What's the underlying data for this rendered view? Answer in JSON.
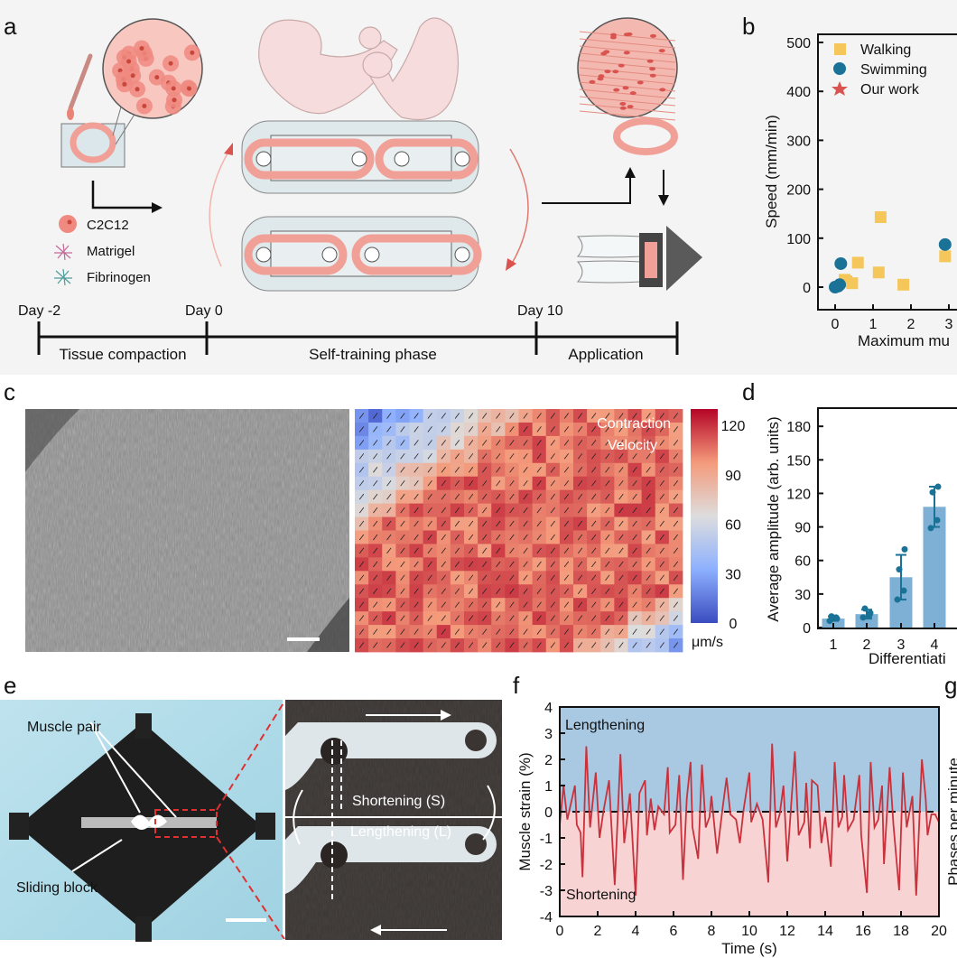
{
  "panel_labels": {
    "a": "a",
    "b": "b",
    "c": "c",
    "d": "d",
    "e": "e",
    "f": "f",
    "g": "g"
  },
  "panel_a": {
    "legend": [
      {
        "label": "C2C12",
        "color": "#f08a80"
      },
      {
        "label": "Matrigel",
        "color": "#c06a9a"
      },
      {
        "label": "Fibrinogen",
        "color": "#4f9c9c"
      }
    ],
    "timeline": {
      "days": [
        "Day -2",
        "Day 0",
        "Day 10"
      ],
      "phases": [
        "Tissue compaction",
        "Self-training phase",
        "Application"
      ]
    },
    "colors": {
      "tissue": "#f0a096",
      "arrow": "#d9534f",
      "background": "#f4f4f4"
    }
  },
  "chart_data": [
    {
      "panel": "b",
      "type": "scatter",
      "xlabel": "Maximum mu",
      "ylabel": "Speed (mm/min)",
      "xlim": [
        -0.45,
        3.2
      ],
      "ylim": [
        -45,
        520
      ],
      "xticks": [
        0,
        1,
        2,
        3
      ],
      "yticks": [
        0,
        100,
        200,
        300,
        400,
        500
      ],
      "legend_position": "top-left",
      "series": [
        {
          "name": "Walking",
          "marker": "square",
          "color": "#f5c75a",
          "points": [
            [
              0.25,
              15
            ],
            [
              0.3,
              12
            ],
            [
              0.45,
              8
            ],
            [
              0.6,
              50
            ],
            [
              1.15,
              30
            ],
            [
              1.2,
              143
            ],
            [
              1.8,
              5
            ],
            [
              2.9,
              63
            ]
          ]
        },
        {
          "name": "Swimming",
          "marker": "circle",
          "color": "#1a7296",
          "points": [
            [
              0.0,
              0
            ],
            [
              0.08,
              2
            ],
            [
              0.12,
              5
            ],
            [
              0.15,
              48
            ],
            [
              2.9,
              87
            ]
          ]
        },
        {
          "name": "Our work",
          "marker": "star",
          "color": "#d9534f",
          "points": []
        }
      ]
    },
    {
      "panel": "c",
      "type": "heatmap",
      "title": [
        "Contraction",
        "Velocity"
      ],
      "colorbar": {
        "min": 0,
        "max": 130,
        "ticks": [
          0,
          30,
          60,
          90,
          120
        ],
        "unit": "μm/s",
        "colormap": "coolwarm"
      }
    },
    {
      "panel": "d",
      "type": "bar",
      "xlabel": "Differentiati",
      "ylabel": "Average amplitude (arb. units)",
      "ylim": [
        0,
        196
      ],
      "yticks": [
        0,
        30,
        60,
        90,
        120,
        150,
        180
      ],
      "categories": [
        "1",
        "2",
        "3",
        "4"
      ],
      "values": [
        8,
        12,
        45,
        108
      ],
      "errors": [
        2,
        4,
        20,
        18
      ],
      "points": [
        [
          6,
          9,
          10,
          8
        ],
        [
          9,
          11,
          17,
          13
        ],
        [
          25,
          33,
          52,
          70
        ],
        [
          89,
          96,
          121,
          126
        ]
      ],
      "color": "#7eb0d5",
      "point_color": "#1a7296"
    },
    {
      "panel": "f",
      "type": "line",
      "xlabel": "Time (s)",
      "ylabel": "Muscle strain (%)",
      "xlim": [
        0,
        20
      ],
      "ylim": [
        -4,
        4
      ],
      "xticks": [
        0,
        2,
        4,
        6,
        8,
        10,
        12,
        14,
        16,
        18,
        20
      ],
      "yticks": [
        4,
        3,
        2,
        1,
        0,
        -1,
        -2,
        -3,
        -4
      ],
      "region_labels": {
        "upper": "Lengthening",
        "lower": "Shortening"
      },
      "colors": {
        "line": "#c8323c",
        "upper": "#a9c9e3",
        "lower": "#f8d3d3"
      },
      "series": [
        {
          "x": [
            0,
            0.2,
            0.4,
            0.8,
            0.9,
            1.1,
            1.2,
            1.4,
            1.6,
            1.9,
            2.1,
            2.3,
            2.6,
            2.7,
            2.9,
            3.2,
            3.4,
            3.7,
            4.0,
            4.2,
            4.5,
            4.6,
            4.8,
            5.0,
            5.2,
            5.5,
            5.7,
            5.8,
            6.1,
            6.3,
            6.5,
            6.7,
            6.9,
            7.0,
            7.3,
            7.5,
            7.7,
            7.9,
            8.0,
            8.3,
            8.6,
            8.8,
            9.0,
            9.3,
            9.5,
            9.7,
            10.0,
            10.1,
            10.4,
            10.7,
            11.0,
            11.2,
            11.4,
            11.6,
            11.8,
            12.0,
            12.4,
            12.6,
            12.9,
            13.0,
            13.2,
            13.3,
            13.6,
            13.8,
            14.0,
            14.3,
            14.5,
            14.7,
            14.9,
            15.0,
            15.2,
            15.5,
            15.8,
            15.9,
            16.2,
            16.4,
            16.6,
            16.8,
            17.0,
            17.1,
            17.4,
            17.6,
            17.9,
            18.1,
            18.3,
            18.6,
            18.8,
            19.1,
            19.3,
            19.4,
            19.6,
            19.8,
            20
          ],
          "y": [
            -0.5,
            1.0,
            -0.3,
            1.0,
            -0.5,
            -0.8,
            -2.5,
            2.5,
            -0.6,
            1.5,
            -1.0,
            0,
            1.2,
            -0.2,
            -2.8,
            2.2,
            -1.2,
            0.7,
            -3.2,
            0.7,
            1.2,
            -0.9,
            0.5,
            -0.7,
            0.2,
            -0.1,
            1.7,
            -0.8,
            -0.5,
            1.4,
            -2.6,
            0.5,
            1.9,
            -0.6,
            -1.8,
            1.8,
            -0.6,
            -0.2,
            0.6,
            -1.6,
            0.2,
            1.3,
            -0.1,
            -0.3,
            -1.2,
            0.1,
            1.5,
            -0.4,
            0.3,
            -0.3,
            -2.7,
            2.6,
            -0.6,
            -0.1,
            1.0,
            -1.9,
            2.3,
            -0.9,
            -0.4,
            1.1,
            -1.4,
            1.2,
            1.0,
            -1.2,
            -0.2,
            -2.1,
            1.9,
            -0.6,
            -0.2,
            1.4,
            -0.7,
            -0.3,
            1.4,
            -0.9,
            -3.1,
            1.9,
            -0.6,
            -0.3,
            1.0,
            -2.0,
            1.7,
            -0.5,
            -3.0,
            1.5,
            -0.6,
            0.6,
            -3.2,
            2.0,
            0.5,
            -0.9,
            -0.1,
            -0.1,
            -0.4
          ]
        }
      ]
    },
    {
      "panel": "g",
      "type": "bar",
      "ylabel": "Phases per minute"
    }
  ],
  "panel_e": {
    "labels": {
      "muscle_pair": "Muscle pair",
      "sliding_block": "Sliding block",
      "shortening": "Shortening (S)",
      "lengthening": "Lengthening (L)"
    }
  }
}
